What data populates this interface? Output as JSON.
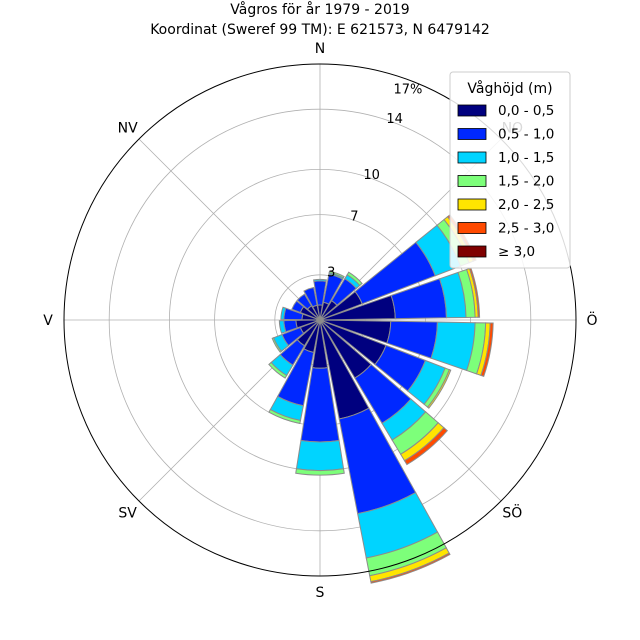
{
  "chart_data": {
    "type": "windrose",
    "title": "Vågros för år 1979 - 2019",
    "subtitle": "Koordinat (Sweref 99 TM): E 621573, N 6479142",
    "directions": [
      {
        "label": "N",
        "angle": 0
      },
      {
        "label": "NO",
        "angle": 45
      },
      {
        "label": "Ö",
        "angle": 90
      },
      {
        "label": "SÖ",
        "angle": 135
      },
      {
        "label": "S",
        "angle": 180
      },
      {
        "label": "SV",
        "angle": 225
      },
      {
        "label": "V",
        "angle": 270
      },
      {
        "label": "NV",
        "angle": 315
      }
    ],
    "radial_ticks": [
      3,
      7,
      10,
      14
    ],
    "radial_max_label": "17%",
    "rmax": 17,
    "legend": {
      "title": "Våghöjd (m)",
      "placement": "top-right",
      "bins": [
        {
          "label": "0,0 - 0,5",
          "color": "#00007f"
        },
        {
          "label": "0,5 - 1,0",
          "color": "#0028ff"
        },
        {
          "label": "1,0 - 1,5",
          "color": "#00d4ff"
        },
        {
          "label": "1,5 - 2,0",
          "color": "#7dff7a"
        },
        {
          "label": "2,0 - 2,5",
          "color": "#ffe500"
        },
        {
          "label": "2,5 - 3,0",
          "color": "#ff4a00"
        },
        {
          "label": "≥ 3,0",
          "color": "#7f0000"
        }
      ]
    },
    "sector_width_deg": 18,
    "sectors": [
      {
        "angle": 0,
        "cumulative": [
          1.0,
          2.6,
          2.7
        ]
      },
      {
        "angle": 20,
        "cumulative": [
          1.2,
          3.1,
          3.2,
          3.3
        ]
      },
      {
        "angle": 40,
        "cumulative": [
          1.5,
          3.2,
          3.5,
          3.7
        ]
      },
      {
        "angle": 60,
        "cumulative": [
          3.0,
          8.2,
          10.0,
          10.6,
          10.9,
          11.1
        ]
      },
      {
        "angle": 80,
        "cumulative": [
          5.0,
          8.4,
          9.7,
          10.3,
          10.5,
          10.6
        ]
      },
      {
        "angle": 100,
        "cumulative": [
          4.7,
          7.8,
          10.3,
          11.0,
          11.3,
          11.5
        ]
      },
      {
        "angle": 120,
        "cumulative": [
          4.7,
          7.5,
          8.9,
          9.2,
          9.3
        ]
      },
      {
        "angle": 140,
        "cumulative": [
          4.5,
          8.0,
          9.3,
          10.4,
          10.9,
          11.2
        ]
      },
      {
        "angle": 160,
        "cumulative": [
          6.7,
          13.1,
          16.1,
          17.3,
          17.7,
          17.8
        ]
      },
      {
        "angle": 180,
        "cumulative": [
          3.2,
          8.1,
          10.0,
          10.3
        ]
      },
      {
        "angle": 200,
        "cumulative": [
          2.2,
          5.8,
          6.8,
          7.0
        ]
      },
      {
        "angle": 220,
        "cumulative": [
          2.0,
          3.5,
          4.3,
          4.5
        ]
      },
      {
        "angle": 240,
        "cumulative": [
          1.4,
          2.7,
          3.3,
          3.4
        ]
      },
      {
        "angle": 260,
        "cumulative": [
          1.6,
          2.4,
          2.7
        ]
      },
      {
        "angle": 280,
        "cumulative": [
          1.2,
          2.4,
          2.6
        ]
      },
      {
        "angle": 300,
        "cumulative": [
          1.4,
          2.0
        ]
      },
      {
        "angle": 320,
        "cumulative": [
          1.1,
          2.0
        ]
      },
      {
        "angle": 340,
        "cumulative": [
          1.0,
          2.2
        ]
      }
    ]
  }
}
